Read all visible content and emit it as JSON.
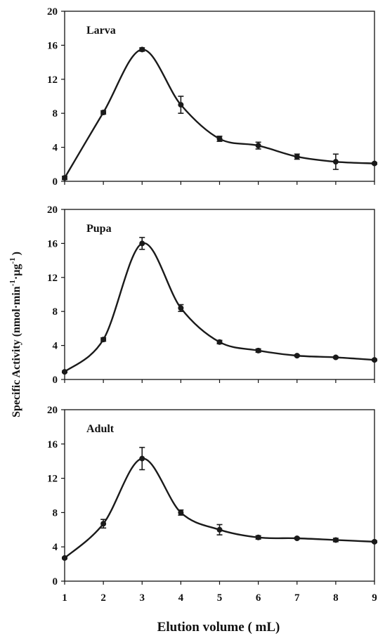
{
  "figure": {
    "ylabel_main": "Specific Activity (nmol·min",
    "ylabel_sup1": "-1",
    "ylabel_mid": "·µg",
    "ylabel_sup2": "-1",
    "ylabel_end": ")",
    "xlabel": "Elution volume ( mL)"
  },
  "chart_data": [
    {
      "type": "line",
      "title": "Larva",
      "x": [
        1,
        2,
        3,
        4,
        5,
        6,
        7,
        8,
        9
      ],
      "xticks": [
        1,
        2,
        3,
        4,
        5,
        6,
        7,
        8,
        9
      ],
      "xlim": [
        1,
        9
      ],
      "ylim": [
        0,
        20
      ],
      "yticks": [
        0,
        4,
        8,
        12,
        16,
        20
      ],
      "series": [
        {
          "values": [
            0.4,
            8.1,
            15.5,
            9.0,
            5.0,
            4.2,
            2.9,
            2.3,
            2.1
          ],
          "errors": [
            0.2,
            0.2,
            0.2,
            1.0,
            0.3,
            0.4,
            0.3,
            0.9,
            0.1
          ]
        }
      ]
    },
    {
      "type": "line",
      "title": "Pupa",
      "x": [
        1,
        2,
        3,
        4,
        5,
        6,
        7,
        8,
        9
      ],
      "xticks": [
        1,
        2,
        3,
        4,
        5,
        6,
        7,
        8,
        9
      ],
      "xlim": [
        1,
        9
      ],
      "ylim": [
        0,
        20
      ],
      "yticks": [
        0,
        4,
        8,
        12,
        16,
        20
      ],
      "series": [
        {
          "values": [
            0.9,
            4.7,
            16.0,
            8.4,
            4.4,
            3.4,
            2.8,
            2.6,
            2.3
          ],
          "errors": [
            0.1,
            0.2,
            0.7,
            0.4,
            0.2,
            0.2,
            0.1,
            0.1,
            0.1
          ]
        }
      ]
    },
    {
      "type": "line",
      "title": "Adult",
      "x": [
        1,
        2,
        3,
        4,
        5,
        6,
        7,
        8,
        9
      ],
      "xticks": [
        1,
        2,
        3,
        4,
        5,
        6,
        7,
        8,
        9
      ],
      "xlim": [
        1,
        9
      ],
      "ylim": [
        0,
        20
      ],
      "yticks": [
        0,
        4,
        8,
        12,
        16,
        20
      ],
      "series": [
        {
          "values": [
            2.7,
            6.7,
            14.3,
            8.0,
            6.0,
            5.1,
            5.0,
            4.8,
            4.6
          ],
          "errors": [
            0.1,
            0.5,
            1.3,
            0.3,
            0.6,
            0.2,
            0.1,
            0.2,
            0.1
          ]
        }
      ]
    }
  ]
}
